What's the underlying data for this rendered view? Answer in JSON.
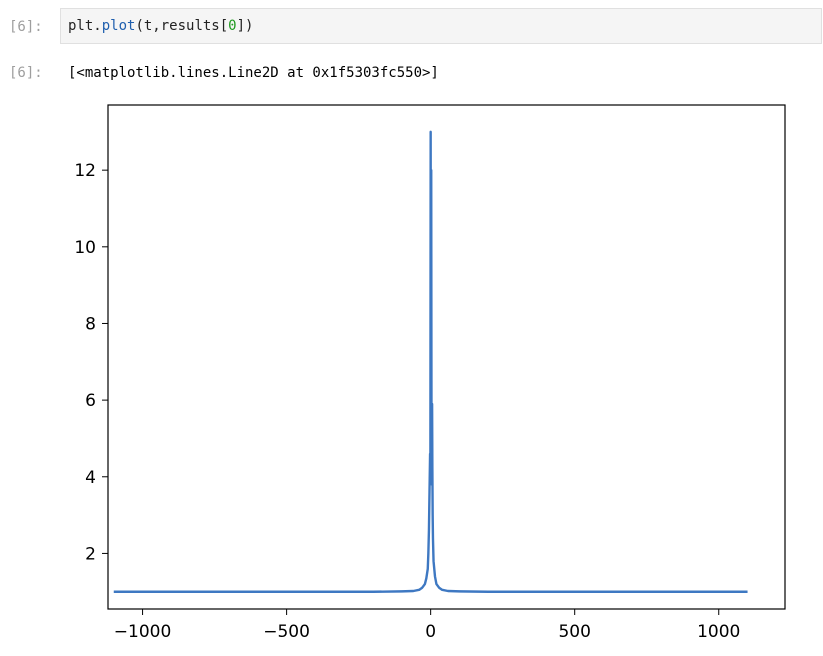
{
  "cell": {
    "in_prompt": "[6]:",
    "code_plain_1": "plt.",
    "code_fn": "plot",
    "code_plain_2": "(t,results[",
    "code_num": "0",
    "code_plain_3": "])",
    "out_prompt": "[6]:",
    "output_text": "[<matplotlib.lines.Line2D at 0x1f5303fc550>]"
  },
  "colors": {
    "line": "#3e78c2",
    "fn": "#1f5fae",
    "num": "#1f9a1f"
  },
  "chart_data": {
    "type": "line",
    "title": "",
    "xlabel": "",
    "ylabel": "",
    "xlim": [
      -1120,
      1230
    ],
    "ylim": [
      0.55,
      13.7
    ],
    "xticks": [
      -1000,
      -500,
      0,
      500,
      1000
    ],
    "xtick_labels": [
      "−1000",
      "−500",
      "0",
      "500",
      "1000"
    ],
    "yticks": [
      2,
      4,
      6,
      8,
      10,
      12
    ],
    "ytick_labels": [
      "2",
      "4",
      "6",
      "8",
      "10",
      "12"
    ],
    "grid": false,
    "series": [
      {
        "x": [
          -1100,
          -900,
          -700,
          -500,
          -300,
          -200,
          -100,
          -60,
          -40,
          -30,
          -20,
          -15,
          -10,
          -8,
          -6,
          -4,
          -2,
          -1,
          0,
          1,
          2,
          3,
          4,
          5,
          6,
          7,
          8,
          10,
          15,
          20,
          30,
          40,
          60,
          100,
          200,
          300,
          500,
          700,
          900,
          1100
        ],
        "y": [
          1.0,
          1.0,
          1.0,
          1.0,
          1.0,
          1.0,
          1.01,
          1.02,
          1.05,
          1.1,
          1.2,
          1.35,
          1.6,
          2.0,
          2.6,
          3.6,
          4.6,
          3.8,
          13.0,
          4.0,
          12.0,
          5.0,
          3.8,
          5.9,
          4.2,
          3.0,
          2.4,
          1.8,
          1.4,
          1.2,
          1.1,
          1.05,
          1.02,
          1.01,
          1.0,
          1.0,
          1.0,
          1.0,
          1.0,
          1.0
        ]
      }
    ]
  }
}
